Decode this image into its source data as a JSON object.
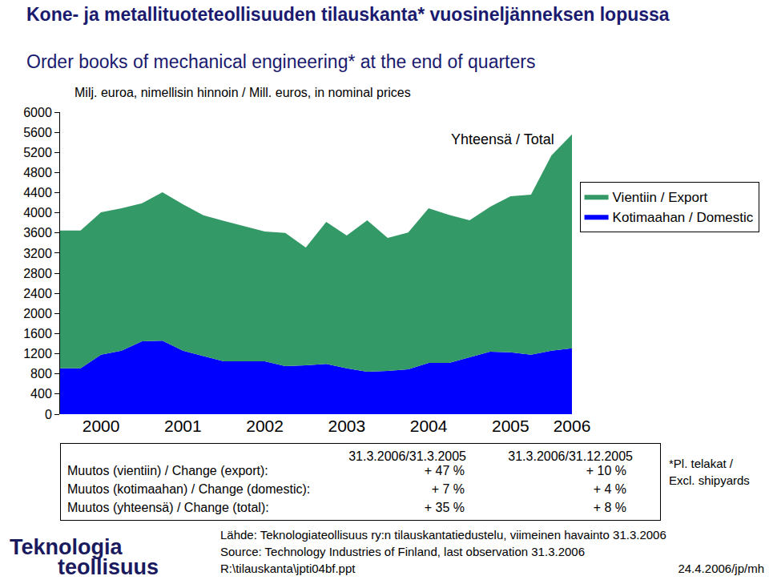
{
  "chart_data": {
    "type": "area",
    "title": "Kone- ja metallituoteteollisuuden tilauskanta* vuosineljänneksen lopussa",
    "subtitle": "Order books of mechanical engineering* at the end of quarters",
    "ylabel": "Milj. euroa, nimellisin hinnoin / Mill. euros, in nominal prices",
    "categories": [
      null,
      null,
      "2000",
      null,
      null,
      null,
      "2001",
      null,
      null,
      null,
      "2002",
      null,
      null,
      null,
      "2003",
      null,
      null,
      null,
      "2004",
      null,
      null,
      null,
      "2005",
      null,
      null,
      "2006"
    ],
    "series": [
      {
        "name": "Kotimaahan / Domestic",
        "color": "#0000ff",
        "values": [
          910,
          910,
          1180,
          1260,
          1450,
          1460,
          1260,
          1150,
          1050,
          1050,
          1050,
          955,
          970,
          1000,
          910,
          845,
          860,
          890,
          1020,
          1020,
          1130,
          1240,
          1230,
          1180,
          1260,
          1310
        ]
      },
      {
        "name": "Vientiin / Export",
        "color": "#339966",
        "values": [
          2740,
          2740,
          2830,
          2830,
          2740,
          2950,
          2910,
          2800,
          2790,
          2690,
          2580,
          2645,
          2340,
          2820,
          2640,
          3005,
          2640,
          2720,
          3070,
          2940,
          2720,
          2880,
          3100,
          3180,
          3880,
          4250
        ]
      }
    ],
    "stacked": true,
    "ylim": [
      0,
      6000
    ],
    "yticks": [
      0,
      400,
      800,
      1200,
      1600,
      2000,
      2400,
      2800,
      3200,
      3600,
      4000,
      4400,
      4800,
      5200,
      5600,
      6000
    ],
    "grid": false,
    "legend": "right",
    "annotations": [
      {
        "text": "Yhteensä / Total"
      }
    ],
    "table": {
      "header": [
        "31.3.2006/31.3.2005",
        "31.3.2006/31.12.2005"
      ],
      "rows": [
        [
          "Muutos (vientiin) / Change (export):",
          "+ 47 %",
          "+ 10 %"
        ],
        [
          "Muutos (kotimaahan) / Change (domestic):",
          "+ 7 %",
          "+ 4 %"
        ],
        [
          "Muutos (yhteensä) / Change (total):",
          "+ 35 %",
          "+ 8 %"
        ]
      ]
    },
    "footnote": [
      "*Pl. telakat /",
      "Excl. shipyards"
    ],
    "source": [
      "Lähde: Teknologiateollisuus ry:n tilauskantatiedustelu, viimeinen havainto 31.3.2006",
      "Source: Technology Industries of Finland, last observation 31.3.2006",
      "R:\\tilauskanta\\jpti04bf.ppt"
    ],
    "date": "24.4.2006/jp/mh",
    "logo": [
      "Teknologia",
      "teollisuus"
    ]
  }
}
